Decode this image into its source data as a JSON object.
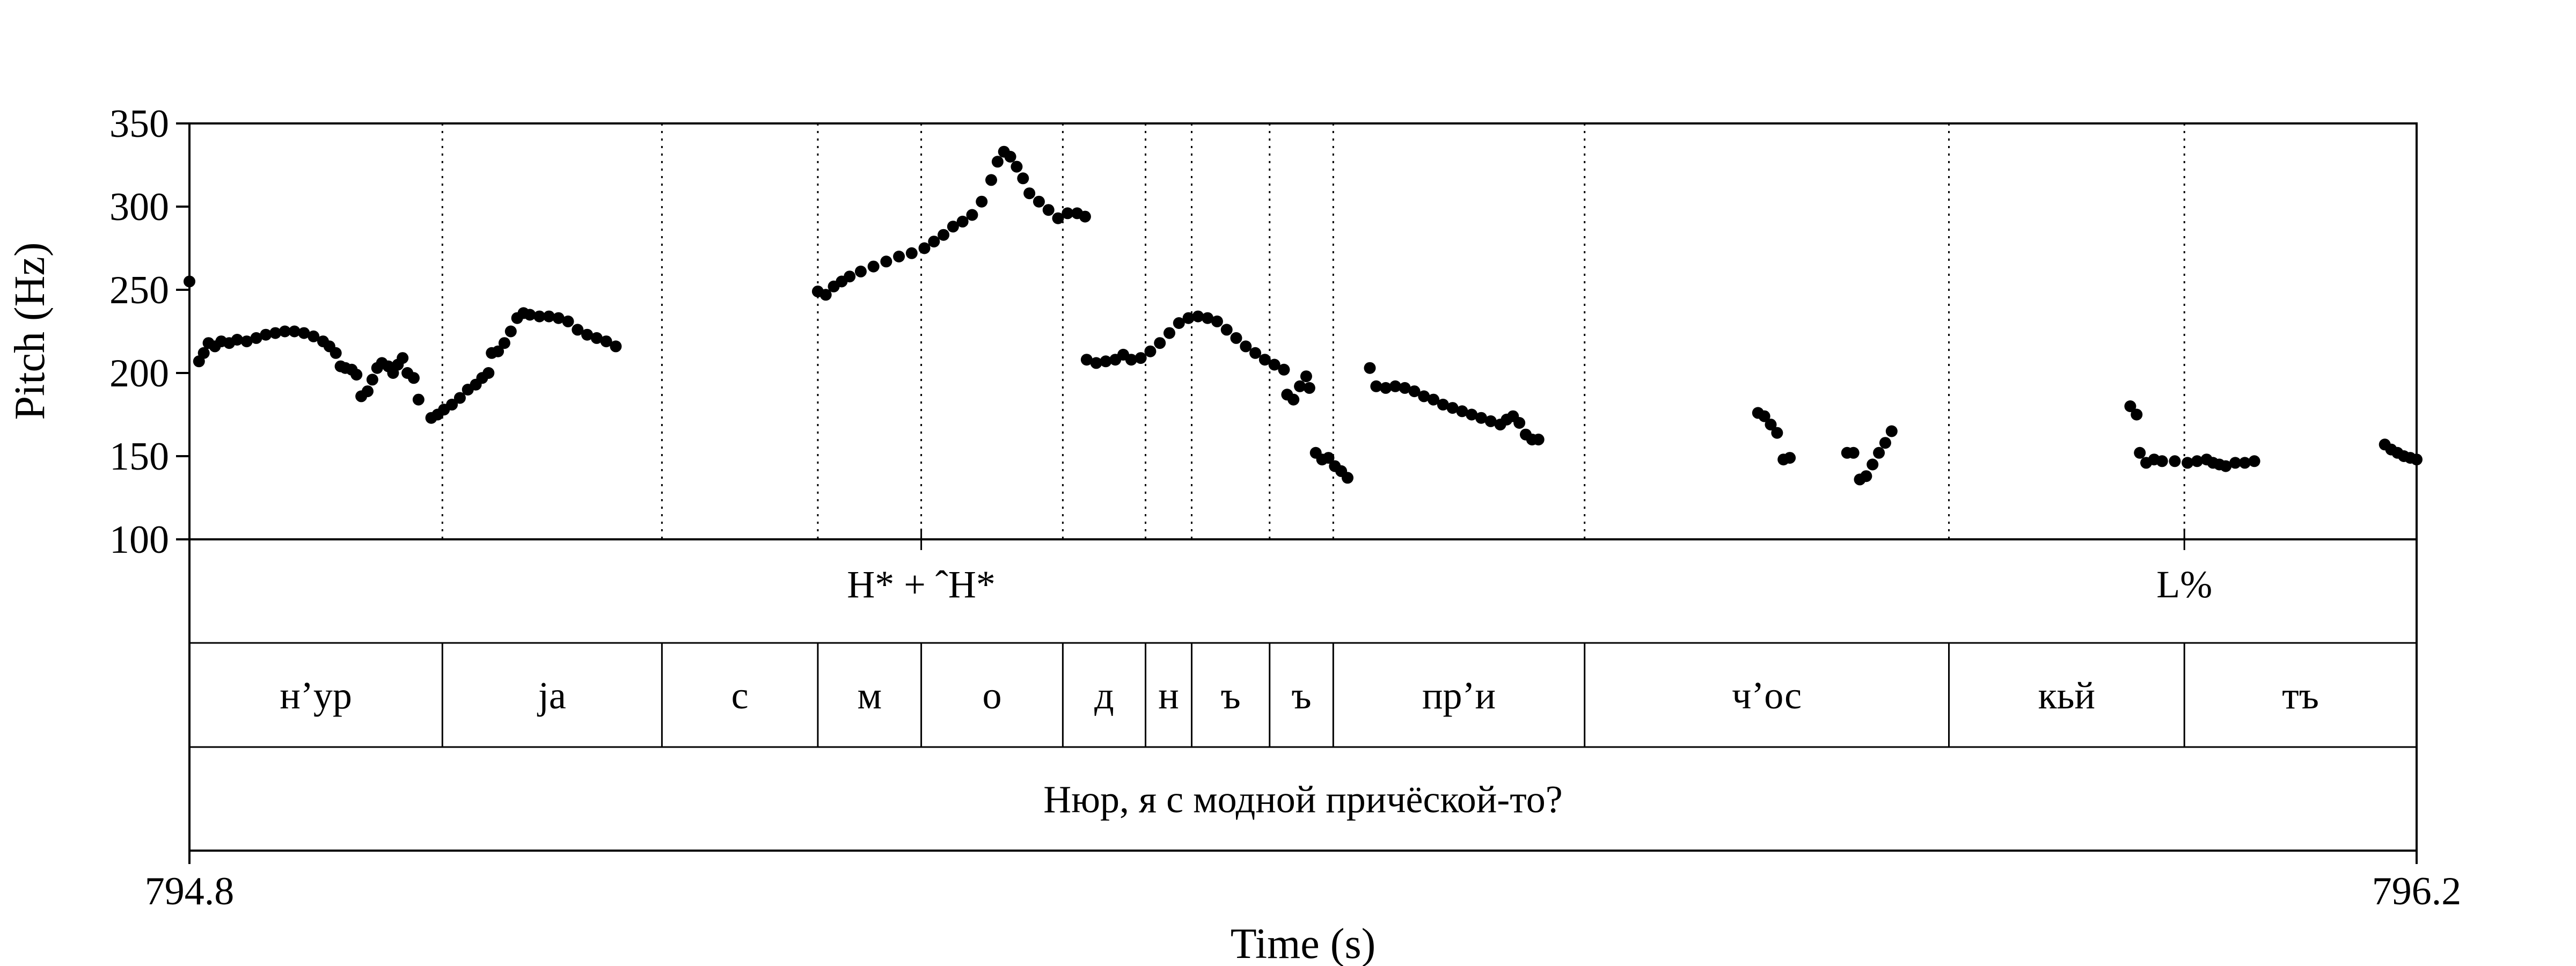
{
  "chart_data": {
    "type": "scatter",
    "title": "",
    "xlabel": "Time (s)",
    "ylabel": "Pitch (Hz)",
    "xlim": [
      794.8,
      796.2
    ],
    "ylim": [
      100,
      350
    ],
    "x_tick_labels": [
      "794.8",
      "796.2"
    ],
    "y_ticks": [
      100,
      150,
      200,
      250,
      300,
      350
    ],
    "marker_color": "#000000",
    "pitch_points": [
      [
        794.8,
        255
      ],
      [
        794.806,
        207
      ],
      [
        794.809,
        212
      ],
      [
        794.812,
        218
      ],
      [
        794.816,
        216
      ],
      [
        794.82,
        219
      ],
      [
        794.825,
        218
      ],
      [
        794.83,
        220
      ],
      [
        794.836,
        219
      ],
      [
        794.842,
        221
      ],
      [
        794.848,
        223
      ],
      [
        794.854,
        224
      ],
      [
        794.86,
        225
      ],
      [
        794.866,
        225
      ],
      [
        794.872,
        224
      ],
      [
        794.878,
        222
      ],
      [
        794.884,
        219
      ],
      [
        794.888,
        216
      ],
      [
        794.892,
        212
      ],
      [
        794.895,
        204
      ],
      [
        794.898,
        203
      ],
      [
        794.902,
        202
      ],
      [
        794.905,
        199
      ],
      [
        794.908,
        186
      ],
      [
        794.912,
        189
      ],
      [
        794.915,
        196
      ],
      [
        794.918,
        203
      ],
      [
        794.921,
        206
      ],
      [
        794.925,
        204
      ],
      [
        794.928,
        200
      ],
      [
        794.931,
        205
      ],
      [
        794.934,
        209
      ],
      [
        794.937,
        200
      ],
      [
        794.941,
        197
      ],
      [
        794.944,
        184
      ],
      [
        794.952,
        173
      ],
      [
        794.956,
        175
      ],
      [
        794.96,
        178
      ],
      [
        794.965,
        181
      ],
      [
        794.97,
        185
      ],
      [
        794.975,
        190
      ],
      [
        794.98,
        193
      ],
      [
        794.984,
        197
      ],
      [
        794.988,
        200
      ],
      [
        794.99,
        212
      ],
      [
        794.994,
        213
      ],
      [
        794.998,
        218
      ],
      [
        795.002,
        225
      ],
      [
        795.006,
        233
      ],
      [
        795.01,
        236
      ],
      [
        795.014,
        235
      ],
      [
        795.02,
        234
      ],
      [
        795.026,
        234
      ],
      [
        795.032,
        233
      ],
      [
        795.038,
        231
      ],
      [
        795.044,
        226
      ],
      [
        795.05,
        223
      ],
      [
        795.056,
        221
      ],
      [
        795.062,
        219
      ],
      [
        795.068,
        216
      ],
      [
        795.195,
        249
      ],
      [
        795.2,
        247
      ],
      [
        795.205,
        252
      ],
      [
        795.21,
        255
      ],
      [
        795.215,
        258
      ],
      [
        795.222,
        261
      ],
      [
        795.23,
        264
      ],
      [
        795.238,
        267
      ],
      [
        795.246,
        270
      ],
      [
        795.254,
        272
      ],
      [
        795.262,
        275
      ],
      [
        795.268,
        279
      ],
      [
        795.274,
        283
      ],
      [
        795.28,
        288
      ],
      [
        795.286,
        291
      ],
      [
        795.292,
        295
      ],
      [
        795.298,
        303
      ],
      [
        795.304,
        316
      ],
      [
        795.308,
        327
      ],
      [
        795.312,
        333
      ],
      [
        795.316,
        330
      ],
      [
        795.32,
        324
      ],
      [
        795.324,
        317
      ],
      [
        795.328,
        308
      ],
      [
        795.334,
        303
      ],
      [
        795.34,
        298
      ],
      [
        795.346,
        293
      ],
      [
        795.352,
        296
      ],
      [
        795.358,
        296
      ],
      [
        795.363,
        294
      ],
      [
        795.364,
        208
      ],
      [
        795.37,
        206
      ],
      [
        795.376,
        207
      ],
      [
        795.382,
        208
      ],
      [
        795.387,
        211
      ],
      [
        795.392,
        208
      ],
      [
        795.398,
        209
      ],
      [
        795.404,
        213
      ],
      [
        795.41,
        218
      ],
      [
        795.416,
        224
      ],
      [
        795.422,
        230
      ],
      [
        795.428,
        233
      ],
      [
        795.434,
        234
      ],
      [
        795.44,
        233
      ],
      [
        795.446,
        231
      ],
      [
        795.452,
        226
      ],
      [
        795.458,
        221
      ],
      [
        795.464,
        216
      ],
      [
        795.47,
        212
      ],
      [
        795.476,
        208
      ],
      [
        795.482,
        205
      ],
      [
        795.488,
        202
      ],
      [
        795.49,
        187
      ],
      [
        795.494,
        184
      ],
      [
        795.498,
        192
      ],
      [
        795.502,
        198
      ],
      [
        795.504,
        191
      ],
      [
        795.508,
        152
      ],
      [
        795.512,
        148
      ],
      [
        795.516,
        149
      ],
      [
        795.52,
        144
      ],
      [
        795.524,
        141
      ],
      [
        795.528,
        137
      ],
      [
        795.542,
        203
      ],
      [
        795.546,
        192
      ],
      [
        795.552,
        191
      ],
      [
        795.558,
        192
      ],
      [
        795.564,
        191
      ],
      [
        795.57,
        189
      ],
      [
        795.576,
        186
      ],
      [
        795.582,
        184
      ],
      [
        795.588,
        181
      ],
      [
        795.594,
        179
      ],
      [
        795.6,
        177
      ],
      [
        795.606,
        175
      ],
      [
        795.612,
        173
      ],
      [
        795.618,
        171
      ],
      [
        795.624,
        169
      ],
      [
        795.628,
        172
      ],
      [
        795.632,
        174
      ],
      [
        795.636,
        170
      ],
      [
        795.64,
        163
      ],
      [
        795.644,
        160
      ],
      [
        795.648,
        160
      ],
      [
        795.786,
        176
      ],
      [
        795.79,
        174
      ],
      [
        795.794,
        169
      ],
      [
        795.798,
        164
      ],
      [
        795.802,
        148
      ],
      [
        795.806,
        149
      ],
      [
        795.842,
        152
      ],
      [
        795.846,
        152
      ],
      [
        795.85,
        136
      ],
      [
        795.854,
        138
      ],
      [
        795.858,
        145
      ],
      [
        795.862,
        152
      ],
      [
        795.866,
        158
      ],
      [
        795.87,
        165
      ],
      [
        796.02,
        180
      ],
      [
        796.024,
        175
      ],
      [
        796.026,
        152
      ],
      [
        796.03,
        146
      ],
      [
        796.035,
        148
      ],
      [
        796.04,
        147
      ],
      [
        796.048,
        147
      ],
      [
        796.056,
        146
      ],
      [
        796.062,
        147
      ],
      [
        796.068,
        148
      ],
      [
        796.072,
        146
      ],
      [
        796.076,
        145
      ],
      [
        796.08,
        144
      ],
      [
        796.086,
        146
      ],
      [
        796.092,
        146
      ],
      [
        796.098,
        147
      ],
      [
        796.18,
        157
      ],
      [
        796.184,
        154
      ],
      [
        796.188,
        152
      ],
      [
        796.192,
        150
      ],
      [
        796.196,
        149
      ],
      [
        796.2,
        148
      ]
    ],
    "tone_tier": [
      {
        "label": "H* + ˆH*",
        "time": 795.26
      },
      {
        "label": "L%",
        "time": 796.054
      }
    ],
    "segment_tier": [
      {
        "label": "н’ур",
        "start": 794.8,
        "end": 794.959
      },
      {
        "label": "ja",
        "start": 794.959,
        "end": 795.097
      },
      {
        "label": "с",
        "start": 795.097,
        "end": 795.195
      },
      {
        "label": "м",
        "start": 795.195,
        "end": 795.26
      },
      {
        "label": "о",
        "start": 795.26,
        "end": 795.349
      },
      {
        "label": "д",
        "start": 795.349,
        "end": 795.401
      },
      {
        "label": "н",
        "start": 795.401,
        "end": 795.43
      },
      {
        "label": "ъ",
        "start": 795.43,
        "end": 795.479
      },
      {
        "label": "ъ",
        "start": 795.479,
        "end": 795.519
      },
      {
        "label": "пр’и",
        "start": 795.519,
        "end": 795.677
      },
      {
        "label": "ч’ос",
        "start": 795.677,
        "end": 795.906
      },
      {
        "label": "кьй",
        "start": 795.906,
        "end": 796.054
      },
      {
        "label": "тъ",
        "start": 796.054,
        "end": 796.2
      }
    ],
    "sentence_tier": [
      {
        "label": "Нюр, я с модной причёской-то?",
        "start": 794.8,
        "end": 796.2
      }
    ]
  }
}
